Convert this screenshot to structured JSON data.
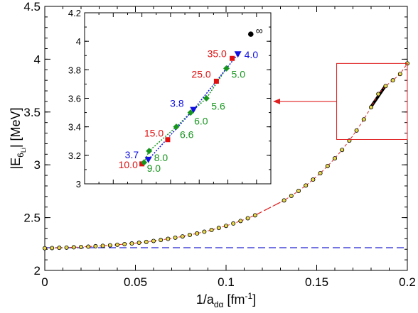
{
  "chart_data": [
    {
      "type": "scatter",
      "title": "",
      "xlabel": {
        "text": "1/a",
        "sub": "dα",
        "unit_open": " [fm",
        "sup": "-1",
        "unit_close": "]"
      },
      "ylabel": {
        "bar_open": "|E",
        "sub": "6",
        "subsub": "Li",
        "bar_close": "|",
        "unit": "  [MeV]"
      },
      "xlim": [
        0,
        0.2
      ],
      "ylim": [
        2,
        4.5
      ],
      "xticks": [
        "0",
        "0.05",
        "0.1",
        "0.15",
        "0.2"
      ],
      "yticks": [
        "2",
        "2.5",
        "3",
        "3.5",
        "4",
        "4.5"
      ],
      "grid": false,
      "series": [
        {
          "style": "circle-markers",
          "color": "#e8d84a",
          "x": [
            0.0,
            0.004,
            0.008,
            0.012,
            0.016,
            0.02,
            0.024,
            0.028,
            0.032,
            0.036,
            0.04,
            0.044,
            0.048,
            0.052,
            0.056,
            0.06,
            0.064,
            0.068,
            0.072,
            0.076,
            0.08,
            0.084,
            0.088,
            0.092,
            0.096,
            0.1,
            0.104,
            0.108,
            0.112,
            0.116,
            0.132,
            0.136,
            0.14,
            0.144,
            0.148,
            0.152,
            0.156,
            0.16,
            0.164,
            0.168,
            0.172,
            0.176,
            0.18,
            0.184,
            0.188,
            0.192,
            0.196,
            0.2
          ],
          "y": [
            2.21,
            2.212,
            2.214,
            2.216,
            2.219,
            2.222,
            2.225,
            2.229,
            2.233,
            2.238,
            2.243,
            2.249,
            2.255,
            2.262,
            2.27,
            2.279,
            2.288,
            2.299,
            2.31,
            2.322,
            2.336,
            2.35,
            2.366,
            2.383,
            2.402,
            2.422,
            2.444,
            2.468,
            2.494,
            2.522,
            2.663,
            2.706,
            2.753,
            2.804,
            2.86,
            2.921,
            2.988,
            3.061,
            3.141,
            3.229,
            3.325,
            3.43,
            3.545,
            3.67,
            3.746,
            3.8,
            3.86,
            3.96
          ]
        },
        {
          "style": "dashed-line",
          "color": "#e02020",
          "x": [
            0.116,
            0.132
          ],
          "y": [
            2.522,
            2.663
          ]
        },
        {
          "style": "dashed-line",
          "color": "#2020d0",
          "x": [
            0.0,
            0.2
          ],
          "y": [
            2.215,
            2.215
          ]
        },
        {
          "style": "thick-line",
          "color": "#000000",
          "x": [
            0.18,
            0.188
          ],
          "y": [
            3.55,
            3.75
          ]
        }
      ],
      "zoom_box": {
        "x": [
          0.161,
          0.2
        ],
        "y": [
          3.24,
          3.96
        ]
      }
    },
    {
      "type": "scatter",
      "title": "",
      "xlim": [
        0,
        0.13
      ],
      "ylim": [
        3,
        4.2
      ],
      "yticks": [
        "3",
        "3.2",
        "3.4",
        "3.6",
        "3.8",
        "4",
        "4.2"
      ],
      "grid": false,
      "series": [
        {
          "style": "red-squares",
          "color": "#e01010",
          "points": [
            {
              "x": 0.04,
              "y": 3.14,
              "label": "10.0"
            },
            {
              "x": 0.058,
              "y": 3.31,
              "label": "15.0"
            },
            {
              "x": 0.092,
              "y": 3.72,
              "label": "25.0"
            },
            {
              "x": 0.103,
              "y": 3.88,
              "label": "35.0"
            }
          ]
        },
        {
          "style": "blue-triangles",
          "color": "#1010e0",
          "points": [
            {
              "x": 0.0445,
              "y": 3.17,
              "label": "3.7"
            },
            {
              "x": 0.076,
              "y": 3.52,
              "label": "3.8"
            },
            {
              "x": 0.107,
              "y": 3.91,
              "label": "4.0"
            }
          ]
        },
        {
          "style": "green-diamonds",
          "color": "#17961e",
          "points": [
            {
              "x": 0.0415,
              "y": 3.15,
              "label": "9.0"
            },
            {
              "x": 0.045,
              "y": 3.23,
              "label": "8.0"
            },
            {
              "x": 0.064,
              "y": 3.4,
              "label": "6.6"
            },
            {
              "x": 0.074,
              "y": 3.5,
              "label": "6.0"
            },
            {
              "x": 0.085,
              "y": 3.6,
              "label": "5.6"
            },
            {
              "x": 0.099,
              "y": 3.81,
              "label": "5.0"
            }
          ]
        },
        {
          "style": "black-circle",
          "color": "#000000",
          "points": [
            {
              "x": 0.116,
              "y": 4.05,
              "label": "∞"
            }
          ]
        }
      ]
    }
  ]
}
